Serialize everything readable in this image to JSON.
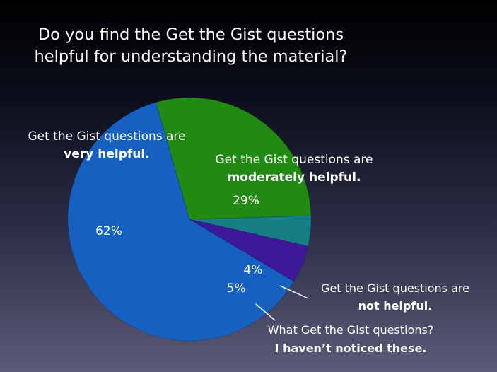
{
  "title_lines": [
    "Do you find the Get the Gist questions",
    "helpful for understanding the material?"
  ],
  "chart_data": {
    "type": "pie",
    "slices": [
      {
        "key": "very",
        "value": 62,
        "label": "62%",
        "color": "#1560c0",
        "caption": [
          "Get the Gist questions are",
          "very helpful."
        ]
      },
      {
        "key": "moderately",
        "value": 29,
        "label": "29%",
        "color": "#218a12",
        "caption": [
          "Get the Gist questions are",
          "moderately helpful."
        ]
      },
      {
        "key": "not",
        "value": 4,
        "label": "4%",
        "color": "#167f86",
        "caption": [
          "Get the Gist questions are",
          "not helpful."
        ]
      },
      {
        "key": "noticed",
        "value": 5,
        "label": "5%",
        "color": "#3d199a",
        "caption": [
          "What Get the Gist questions?",
          "I haven’t noticed these."
        ]
      }
    ]
  }
}
